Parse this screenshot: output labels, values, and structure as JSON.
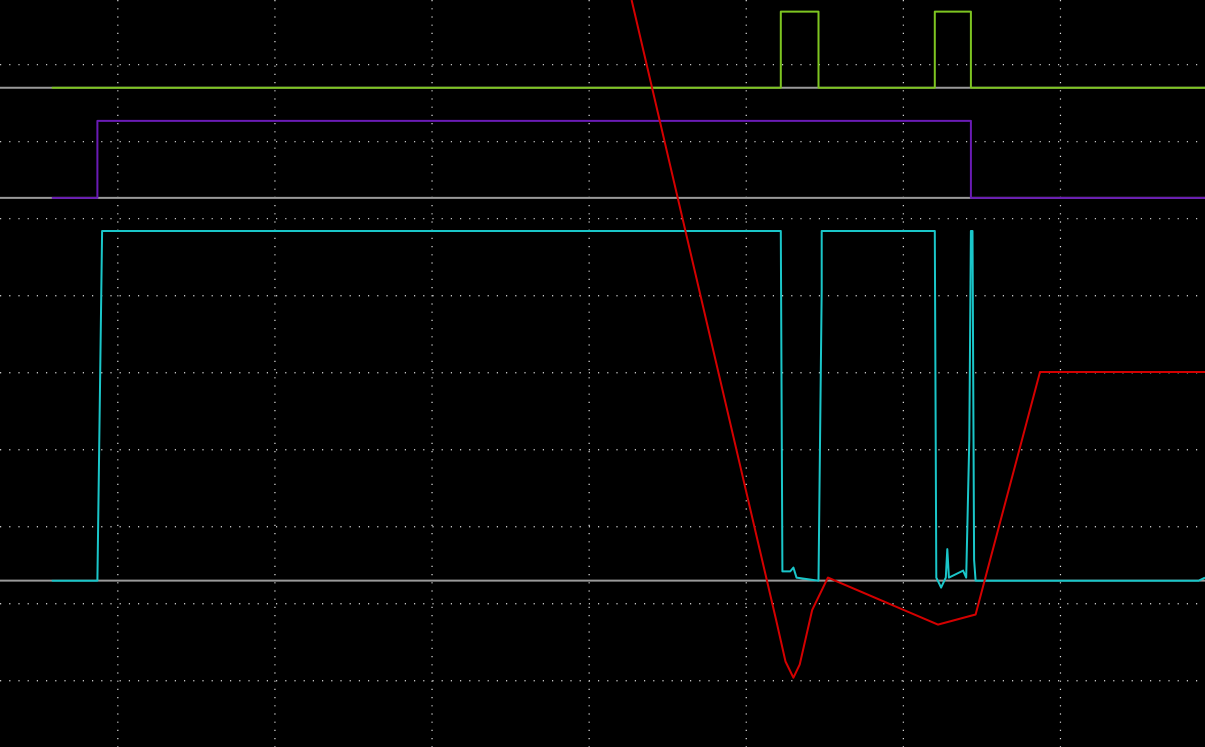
{
  "chart_data": {
    "type": "line",
    "xlim": [
      -0.75,
      6.92
    ],
    "ylim": [
      0.14,
      9.84
    ],
    "xticks": [
      0,
      1,
      2,
      3,
      4,
      5,
      6
    ],
    "yticks": [
      1,
      2,
      3,
      4,
      5,
      6,
      7,
      8,
      9
    ],
    "grid": true,
    "baselines": [
      8.7,
      7.27,
      2.3
    ],
    "baseline_color": "#9a9a9a",
    "series": [
      {
        "color": "#7ec521",
        "x": [
          -0.42,
          4.22,
          4.22,
          4.46,
          4.46,
          5.2,
          5.2,
          5.43,
          5.43,
          6.92
        ],
        "values": [
          8.7,
          8.7,
          9.69,
          9.69,
          8.7,
          8.7,
          9.69,
          9.69,
          8.7,
          8.7
        ]
      },
      {
        "color": "#6a1bb5",
        "x": [
          -0.42,
          -0.13,
          -0.13,
          5.43,
          5.43,
          6.92
        ],
        "values": [
          7.27,
          7.27,
          8.27,
          8.27,
          7.27,
          7.27
        ]
      },
      {
        "color": "#1ac6c9",
        "x": [
          -0.42,
          -0.13,
          -0.1,
          4.22,
          4.23,
          4.28,
          4.3,
          4.32,
          4.46,
          4.48,
          4.48,
          5.2,
          5.21,
          5.24,
          5.27,
          5.28,
          5.29,
          5.38,
          5.4,
          5.42,
          5.43,
          5.44,
          5.45,
          5.46,
          6.88,
          6.92
        ],
        "values": [
          2.3,
          2.3,
          6.84,
          6.84,
          2.42,
          2.42,
          2.47,
          2.34,
          2.3,
          6.08,
          6.84,
          6.84,
          2.34,
          2.21,
          2.34,
          2.71,
          2.34,
          2.43,
          2.34,
          4.13,
          6.84,
          6.84,
          2.57,
          2.3,
          2.3,
          2.34
        ]
      },
      {
        "color": "#d40000",
        "x": [
          3.27,
          4.19,
          4.25,
          4.3,
          4.34,
          4.42,
          4.52,
          5.22,
          5.46,
          5.87,
          6.92
        ],
        "values": [
          9.84,
          1.79,
          1.25,
          1.04,
          1.21,
          1.92,
          2.34,
          1.73,
          1.86,
          5.01,
          5.01
        ]
      }
    ]
  }
}
